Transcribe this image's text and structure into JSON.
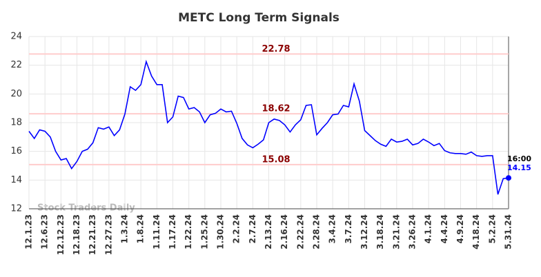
{
  "chart_data": {
    "type": "line",
    "title": "METC Long Term Signals",
    "categories": [
      "12.1.23",
      null,
      null,
      "12.6.23",
      null,
      null,
      "12.12.23",
      null,
      null,
      "12.18.23",
      null,
      null,
      "12.21.23",
      null,
      null,
      "12.27.23",
      null,
      null,
      "1.3.24",
      null,
      null,
      "1.8.24",
      null,
      null,
      "1.11.24",
      null,
      null,
      "1.17.24",
      null,
      null,
      "1.22.24",
      null,
      null,
      "1.25.24",
      null,
      null,
      "1.30.24",
      null,
      null,
      "2.2.24",
      null,
      null,
      "2.7.24",
      null,
      null,
      "2.13.24",
      null,
      null,
      "2.16.24",
      null,
      null,
      "2.22.24",
      null,
      null,
      "2.28.24",
      null,
      null,
      "3.4.24",
      null,
      null,
      "3.7.24",
      null,
      null,
      "3.12.24",
      null,
      null,
      "3.18.24",
      null,
      null,
      "3.21.24",
      null,
      null,
      "3.26.24",
      null,
      null,
      "4.1.24",
      null,
      null,
      "4.4.24",
      null,
      null,
      "4.9.24",
      null,
      null,
      "4.18.24",
      null,
      null,
      "5.2.24",
      null,
      null,
      "5.31.24"
    ],
    "series": [
      {
        "color": "#0000ff",
        "values": [
          17.4,
          16.9,
          17.5,
          17.4,
          17.0,
          16.0,
          15.4,
          15.5,
          14.8,
          15.3,
          16.0,
          16.15,
          16.6,
          17.65,
          17.55,
          17.7,
          17.1,
          17.5,
          18.6,
          20.5,
          20.25,
          20.65,
          22.25,
          21.25,
          20.65,
          20.65,
          18.0,
          18.4,
          19.85,
          19.75,
          18.95,
          19.05,
          18.75,
          18.0,
          18.55,
          18.65,
          18.95,
          18.75,
          18.8,
          17.95,
          16.9,
          16.45,
          16.25,
          16.5,
          16.8,
          18.0,
          18.25,
          18.15,
          17.85,
          17.35,
          17.85,
          18.2,
          19.2,
          19.25,
          17.15,
          17.6,
          18.0,
          18.55,
          18.6,
          19.2,
          19.1,
          20.7,
          19.5,
          17.45,
          17.1,
          16.75,
          16.5,
          16.35,
          16.85,
          16.65,
          16.7,
          16.85,
          16.45,
          16.55,
          16.85,
          16.65,
          16.4,
          16.55,
          16.05,
          15.9,
          15.85,
          15.85,
          15.8,
          15.95,
          15.7,
          15.65,
          15.7,
          15.7,
          13.0,
          14.1,
          14.15
        ]
      }
    ],
    "levels": [
      22.78,
      18.62,
      15.08
    ],
    "level_color": "#ffcccc",
    "level_label_color": "#8b0000",
    "last_time": "16:00",
    "watermark": "Stock Traders Daily",
    "ylim": [
      12,
      24
    ],
    "yticks": [
      12,
      14,
      16,
      18,
      20,
      22,
      24
    ],
    "grid": true
  }
}
